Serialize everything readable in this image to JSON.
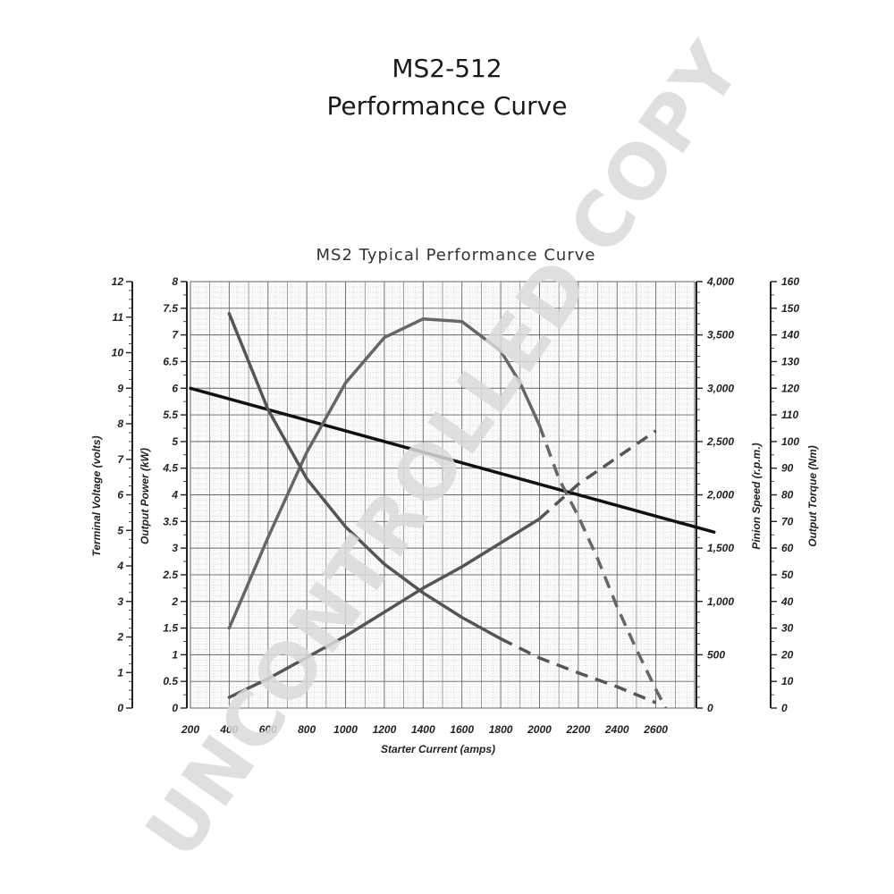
{
  "page": {
    "title_line1": "MS2-512",
    "title_line2": "Performance Curve"
  },
  "watermark": "UNCONTROLLED COPY",
  "chart_data": {
    "type": "line",
    "title": "MS2 Typical Performance Curve",
    "xlabel": "Starter Current  (amps)",
    "xlim": [
      200,
      2800
    ],
    "x_ticks": [
      "200",
      "400",
      "600",
      "800",
      "1000",
      "1200",
      "1400",
      "1600",
      "1800",
      "2000",
      "2200",
      "2400",
      "2600"
    ],
    "axes": [
      {
        "id": "power",
        "label": "Output Power (kW)",
        "ylim": [
          0,
          8
        ],
        "ticks": [
          "0",
          "0.5",
          "1",
          "1.5",
          "2",
          "2.5",
          "3",
          "3.5",
          "4",
          "4.5",
          "5",
          "5.5",
          "6",
          "6.5",
          "7",
          "7.5",
          "8"
        ]
      },
      {
        "id": "voltage",
        "label": "Terminal Voltage (volts)",
        "ylim": [
          0,
          12
        ],
        "ticks": [
          "0",
          "1",
          "2",
          "3",
          "4",
          "5",
          "6",
          "7",
          "8",
          "9",
          "10",
          "11",
          "12"
        ]
      },
      {
        "id": "speed",
        "label": "Pinion Speed (r.p.m.)",
        "ylim": [
          0,
          4000
        ],
        "ticks": [
          "0",
          "500",
          "1,000",
          "1,500",
          "2,000",
          "2,500",
          "3,000",
          "3,500",
          "4,000"
        ]
      },
      {
        "id": "torque",
        "label": "Output Torque (Nm)",
        "ylim": [
          0,
          160
        ],
        "ticks": [
          "0",
          "10",
          "20",
          "30",
          "40",
          "50",
          "60",
          "70",
          "80",
          "90",
          "100",
          "110",
          "120",
          "130",
          "140",
          "150",
          "160"
        ]
      }
    ],
    "series": [
      {
        "axis": "voltage",
        "color": "#111111",
        "x": [
          200,
          2900
        ],
        "y": [
          9.0,
          4.95
        ]
      },
      {
        "axis": "power",
        "color": "#666666",
        "x": [
          400,
          600,
          800,
          1000,
          1200,
          1400,
          1600,
          1800,
          1900,
          2000,
          2100,
          2200,
          2300,
          2400,
          2500,
          2600,
          2650
        ],
        "y": [
          1.5,
          3.2,
          4.8,
          6.1,
          6.95,
          7.3,
          7.25,
          6.7,
          6.1,
          5.3,
          4.3,
          3.6,
          2.8,
          1.9,
          1.1,
          0.35,
          0.0
        ],
        "dashed_from_x": 2000
      },
      {
        "axis": "speed",
        "color": "#555555",
        "x": [
          400,
          600,
          800,
          1000,
          1200,
          1400,
          1600,
          1800,
          2000,
          2200,
          2400,
          2600
        ],
        "y": [
          3700,
          2800,
          2150,
          1700,
          1350,
          1080,
          850,
          650,
          470,
          330,
          200,
          50
        ],
        "dashed_from_x": 1800
      },
      {
        "axis": "torque",
        "color": "#555555",
        "x": [
          400,
          600,
          800,
          1000,
          1200,
          1400,
          1600,
          1800,
          2000,
          2200,
          2400,
          2600
        ],
        "y": [
          4,
          11,
          19,
          27,
          36,
          45,
          53,
          62,
          71,
          84,
          94,
          104
        ],
        "dashed_from_x": 2000
      }
    ]
  }
}
